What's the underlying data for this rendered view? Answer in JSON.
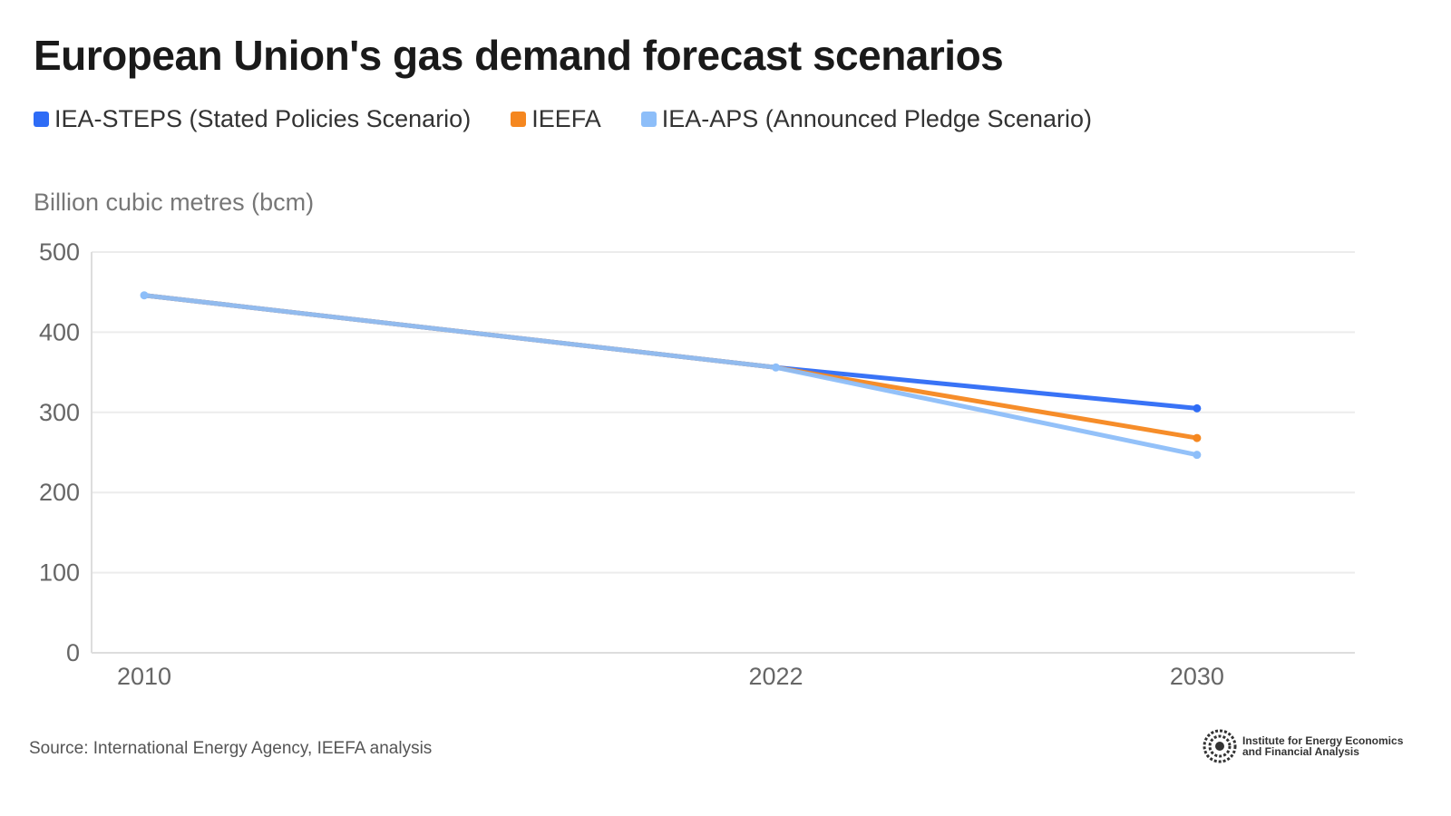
{
  "chart_data": {
    "type": "line",
    "title": "European Union's gas demand forecast scenarios",
    "ylabel": "Billion cubic metres (bcm)",
    "xlabel": "",
    "x": [
      2010,
      2022,
      2030
    ],
    "xticks": [
      "2010",
      "2022",
      "2030"
    ],
    "xlim": [
      2009,
      2033
    ],
    "ylim": [
      0,
      500
    ],
    "yticks": [
      "0",
      "100",
      "200",
      "300",
      "400",
      "500"
    ],
    "grid": true,
    "legend": "top-left",
    "series": [
      {
        "name": "IEA-STEPS (Stated Policies Scenario)",
        "color": "#2e6cf6",
        "values": [
          446,
          356,
          305
        ]
      },
      {
        "name": "IEEFA",
        "color": "#f5871f",
        "values": [
          446,
          356,
          268
        ]
      },
      {
        "name": "IEA-APS (Announced Pledge Scenario)",
        "color": "#8dbef9",
        "values": [
          446,
          356,
          247
        ]
      }
    ],
    "source": "Source: International Energy Agency, IEEFA analysis"
  },
  "logo": {
    "line1": "Institute for Energy Economics",
    "line2": "and Financial Analysis"
  }
}
